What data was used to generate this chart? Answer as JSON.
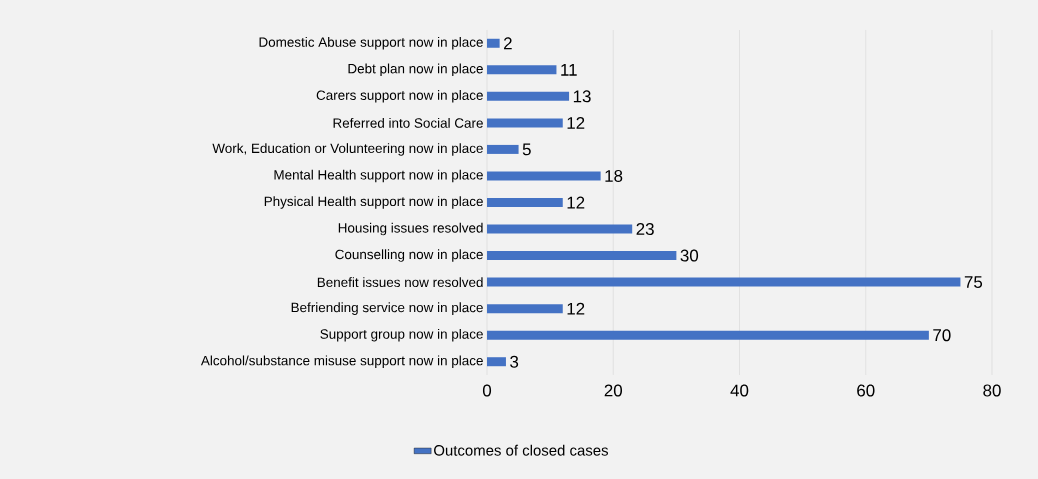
{
  "chart_data": {
    "type": "bar",
    "orientation": "horizontal",
    "categories": [
      "Domestic Abuse support now in place",
      "Debt plan now in place",
      "Carers support now in place",
      "Referred into Social Care",
      "Work, Education or Volunteering now in place",
      "Mental Health support now in place",
      "Physical Health support now in place",
      "Housing issues resolved",
      "Counselling now in place",
      "Benefit issues now resolved",
      "Befriending service now in place",
      "Support group now in place",
      "Alcohol/substance misuse support now in place"
    ],
    "series": [
      {
        "name": "Outcomes of closed cases",
        "color": "#4472c4",
        "values": [
          2,
          11,
          13,
          12,
          5,
          18,
          12,
          23,
          30,
          75,
          12,
          70,
          3
        ]
      }
    ],
    "xlim": [
      0,
      80
    ],
    "xticks": [
      0,
      20,
      40,
      60,
      80
    ],
    "grid": "x",
    "legend": "bottom",
    "data_labels": true
  }
}
